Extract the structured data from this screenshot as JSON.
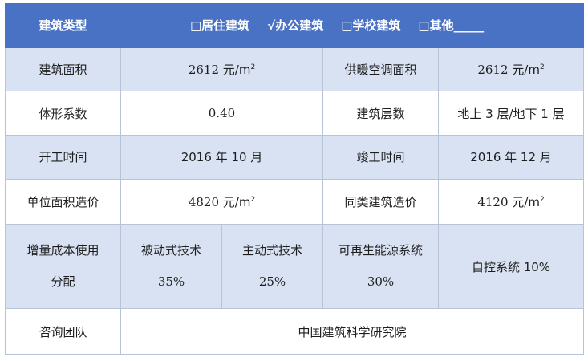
{
  "header": {
    "label": "建筑类型",
    "options": [
      "□居住建筑",
      "√办公建筑",
      "□学校建筑",
      "□其他_____"
    ]
  },
  "rows": {
    "area": {
      "label": "建筑面积",
      "value_num": "2612",
      "value_unit": "元/m",
      "value_exp": "2",
      "label2": "供暖空调面积",
      "value2_num": "2612",
      "value2_unit": "元/m",
      "value2_exp": "2"
    },
    "shape": {
      "label": "体形系数",
      "value": "0.40",
      "label2": "建筑层数",
      "value2": "地上 3 层/地下 1 层"
    },
    "start": {
      "label": "开工时间",
      "value": "2016 年 10 月",
      "label2": "竣工时间",
      "value2": "2016 年 12 月"
    },
    "cost": {
      "label": "单位面积造价",
      "value_num": "4820",
      "value_unit": "元/m",
      "value_exp": "2",
      "label2": "同类建筑造价",
      "value2_num": "4120",
      "value2_unit": "元/m",
      "value2_exp": "2"
    },
    "allocation": {
      "label_line1": "增量成本使用",
      "label_line2": "分配",
      "items": [
        {
          "name": "被动式技术",
          "pct": "35%"
        },
        {
          "name": "主动式技术",
          "pct": "25%"
        },
        {
          "name": "可再生能源系统",
          "pct": "30%"
        },
        {
          "name": "自控系统 10%"
        }
      ]
    },
    "team": {
      "label": "咨询团队",
      "value": "中国建筑科学研究院"
    }
  }
}
